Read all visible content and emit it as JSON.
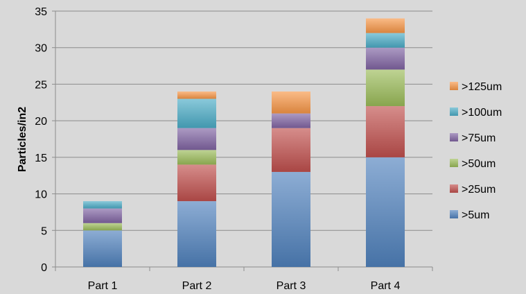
{
  "chart_data": {
    "type": "bar",
    "stacked": true,
    "categories": [
      "Part 1",
      "Part 2",
      "Part 3",
      "Part 4"
    ],
    "ylabel": "Particles/in2",
    "xlabel": "",
    "title": "",
    "ylim": [
      0,
      35
    ],
    "yticks": [
      0,
      5,
      10,
      15,
      20,
      25,
      30,
      35
    ],
    "grid": true,
    "legend_position": "right",
    "series": [
      {
        "name": ">5um",
        "color": "#4f81bd",
        "values": [
          5,
          9,
          13,
          15
        ]
      },
      {
        "name": ">25um",
        "color": "#c0504d",
        "values": [
          0,
          5,
          6,
          7
        ]
      },
      {
        "name": ">50um",
        "color": "#9bbb59",
        "values": [
          1,
          2,
          0,
          5
        ]
      },
      {
        "name": ">75um",
        "color": "#8064a2",
        "values": [
          2,
          3,
          2,
          3
        ]
      },
      {
        "name": ">100um",
        "color": "#4bacc6",
        "values": [
          1,
          4,
          0,
          2
        ]
      },
      {
        "name": ">125um",
        "color": "#f79646",
        "values": [
          0,
          1,
          3,
          2
        ]
      }
    ]
  }
}
